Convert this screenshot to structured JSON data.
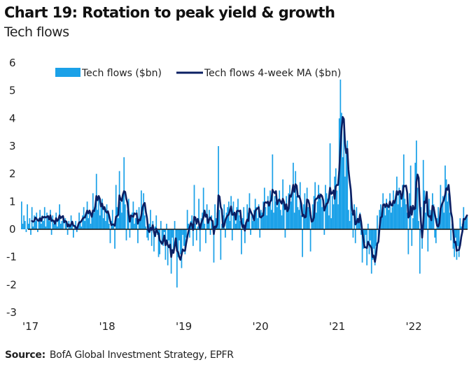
{
  "header": {
    "title": "Chart 19: Rotation to peak yield & growth",
    "subtitle": "Tech flows"
  },
  "footer": {
    "source_label": "Source:",
    "source_text": "BofA Global Investment Strategy, EPFR"
  },
  "colors": {
    "bars": "#1BA1E8",
    "ma_line": "#0B1F63",
    "zero_line": "#111111"
  },
  "chart_data": {
    "type": "bar",
    "title": "Chart 19: Rotation to peak yield & growth",
    "subtitle": "Tech flows",
    "xlabel": "",
    "ylabel": "",
    "ylim": [
      -3,
      6
    ],
    "yticks": [
      "6",
      "5",
      "4",
      "3",
      "2",
      "1",
      "0",
      "-1",
      "-2",
      "-3"
    ],
    "xticks": [
      "'17",
      "'18",
      "'19",
      "'20",
      "'21",
      "'22"
    ],
    "x_range_years": [
      2016.9,
      2022.75
    ],
    "grid": false,
    "legend": {
      "placement": "top",
      "entries": [
        "Tech flows ($bn)",
        "Tech flows 4-week MA ($bn)"
      ]
    },
    "series": [
      {
        "name": "Tech flows ($bn)",
        "type": "bar",
        "frequency": "weekly",
        "start": 2016.92,
        "values": [
          1.0,
          0.2,
          0.5,
          0.3,
          -0.1,
          0.9,
          0.2,
          0.4,
          -0.2,
          0.8,
          0.1,
          0.5,
          0.3,
          0.6,
          -0.1,
          0.4,
          0.7,
          0.2,
          0.5,
          0.3,
          0.8,
          0.1,
          0.6,
          0.4,
          0.3,
          0.7,
          -0.2,
          0.5,
          0.2,
          0.3,
          0.6,
          0.1,
          0.4,
          0.9,
          0.2,
          0.3,
          0.5,
          0.0,
          0.4,
          0.2,
          -0.2,
          0.3,
          0.1,
          0.5,
          0.2,
          -0.3,
          0.1,
          0.3,
          -0.1,
          0.2,
          0.6,
          0.3,
          0.1,
          0.5,
          0.8,
          0.3,
          0.6,
          1.0,
          0.4,
          0.7,
          0.2,
          0.5,
          1.3,
          0.6,
          0.9,
          2.0,
          0.7,
          1.2,
          0.5,
          0.9,
          1.1,
          0.4,
          0.8,
          0.3,
          0.9,
          0.6,
          0.2,
          -0.5,
          0.3,
          0.7,
          0.2,
          -0.7,
          1.6,
          0.8,
          0.4,
          2.1,
          1.0,
          0.6,
          1.3,
          2.6,
          0.9,
          -0.4,
          0.7,
          1.1,
          -0.3,
          0.5,
          0.6,
          1.0,
          0.2,
          0.4,
          0.7,
          -0.5,
          0.8,
          0.3,
          1.4,
          0.6,
          1.3,
          0.5,
          0.1,
          -0.3,
          -0.4,
          0.2,
          0.7,
          -0.6,
          0.3,
          -0.8,
          0.1,
          0.5,
          -0.2,
          -1.0,
          -0.9,
          0.3,
          -0.5,
          -0.6,
          -0.1,
          -1.1,
          0.2,
          -1.3,
          -0.4,
          -0.7,
          -1.6,
          -0.3,
          -0.8,
          0.3,
          -0.5,
          -2.1,
          -1.0,
          -0.4,
          -0.9,
          -1.4,
          -0.2,
          -0.6,
          -0.9,
          -0.3,
          0.7,
          0.2,
          -0.3,
          0.3,
          0.5,
          -0.6,
          1.6,
          0.2,
          -0.4,
          0.1,
          1.1,
          -0.8,
          0.4,
          0.6,
          1.5,
          0.2,
          -0.5,
          0.9,
          0.3,
          0.7,
          -0.2,
          0.5,
          0.2,
          -1.2,
          0.9,
          0.4,
          0.6,
          3.0,
          0.7,
          -1.1,
          0.2,
          0.5,
          0.9,
          -0.3,
          0.6,
          0.8,
          1.0,
          0.3,
          1.2,
          -0.4,
          1.0,
          0.6,
          0.2,
          0.8,
          1.1,
          0.5,
          0.3,
          -0.9,
          0.4,
          0.8,
          -0.5,
          0.2,
          0.9,
          0.6,
          1.3,
          -0.2,
          0.5,
          0.3,
          0.7,
          1.1,
          0.8,
          0.4,
          0.9,
          -0.3,
          0.7,
          0.6,
          1.0,
          1.5,
          0.8,
          0.5,
          1.2,
          0.9,
          1.4,
          0.7,
          2.7,
          0.6,
          1.2,
          1.0,
          0.8,
          1.1,
          1.4,
          0.7,
          0.5,
          1.8,
          0.9,
          -0.3,
          1.2,
          0.8,
          1.3,
          1.6,
          1.0,
          1.4,
          2.4,
          0.6,
          2.1,
          1.2,
          0.8,
          0.7,
          1.7,
          0.5,
          -1.0,
          0.9,
          1.3,
          0.6,
          1.5,
          0.8,
          0.7,
          -0.8,
          0.4,
          0.9,
          1.2,
          1.7,
          0.6,
          1.0,
          1.6,
          1.3,
          1.1,
          0.8,
          1.0,
          -0.2,
          1.6,
          1.3,
          1.1,
          0.5,
          3.1,
          0.4,
          1.2,
          0.9,
          1.9,
          2.2,
          1.4,
          0.9,
          4.0,
          5.4,
          4.2,
          2.6,
          3.7,
          1.9,
          2.8,
          3.2,
          0.7,
          0.3,
          1.5,
          0.6,
          -0.3,
          0.9,
          -0.5,
          0.8,
          0.3,
          0.4,
          0.6,
          -0.2,
          -1.2,
          -0.7,
          -0.5,
          -0.2,
          -1.3,
          0.2,
          -0.9,
          -0.4,
          -1.6,
          -1.1,
          -0.7,
          -1.3,
          -0.6,
          0.5,
          -0.4,
          0.7,
          0.9,
          0.6,
          1.3,
          0.8,
          0.5,
          1.1,
          0.9,
          0.7,
          1.3,
          0.6,
          0.8,
          1.4,
          1.0,
          1.2,
          1.9,
          0.9,
          1.5,
          1.2,
          0.8,
          1.6,
          2.7,
          1.1,
          0.9,
          0.6,
          -0.9,
          1.3,
          2.3,
          -0.6,
          0.4,
          0.8,
          2.4,
          3.2,
          1.5,
          0.3,
          -1.6,
          0.8,
          -0.7,
          2.5,
          1.4,
          0.6,
          0.9,
          -0.8,
          1.1,
          0.7,
          0.3,
          1.3,
          0.9,
          -0.3,
          -0.5,
          0.4,
          0.8,
          0.2,
          1.6,
          0.9,
          1.2,
          0.6,
          2.3,
          1.8,
          1.0,
          1.3,
          0.6,
          -0.4,
          0.2,
          -0.7,
          -1.0,
          -0.3,
          -1.1,
          -0.6,
          -1.0,
          0.4,
          0.1,
          0.2,
          0.8,
          0.3,
          0.4,
          0.5
        ]
      },
      {
        "name": "Tech flows 4-week MA ($bn)",
        "type": "line",
        "frequency": "weekly",
        "derived_from": "Tech flows ($bn)",
        "window": 4
      }
    ]
  }
}
